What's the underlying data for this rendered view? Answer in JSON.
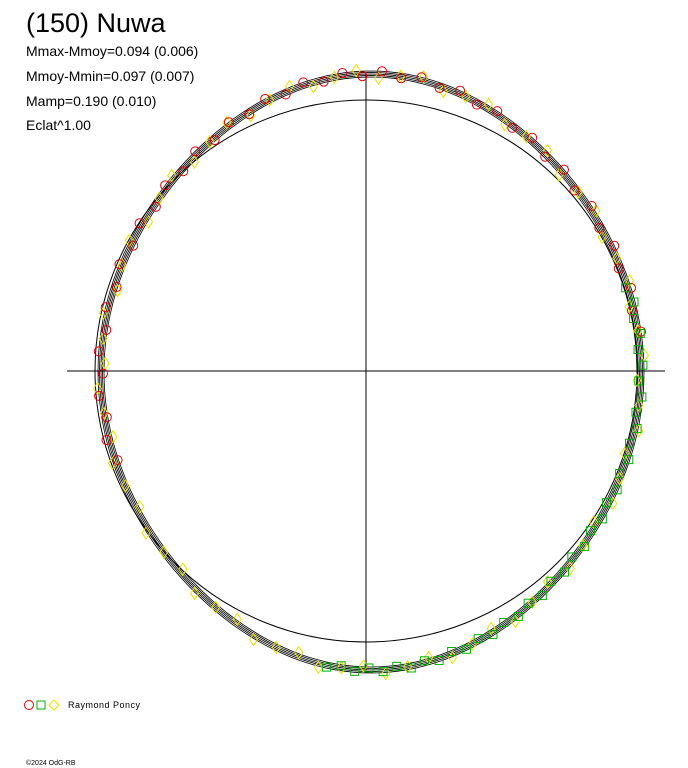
{
  "header": {
    "title": "(150) Nuwa",
    "lines": [
      "Mmax-Mmoy=0.094 (0.006)",
      "Mmoy-Mmin=0.097 (0.007)",
      "Mamp=0.190 (0.010)",
      "Eclat^1.00"
    ]
  },
  "legend": {
    "observer": "Raymond Poncy"
  },
  "footer": {
    "credit": "©2024 OdG-RB"
  }
}
